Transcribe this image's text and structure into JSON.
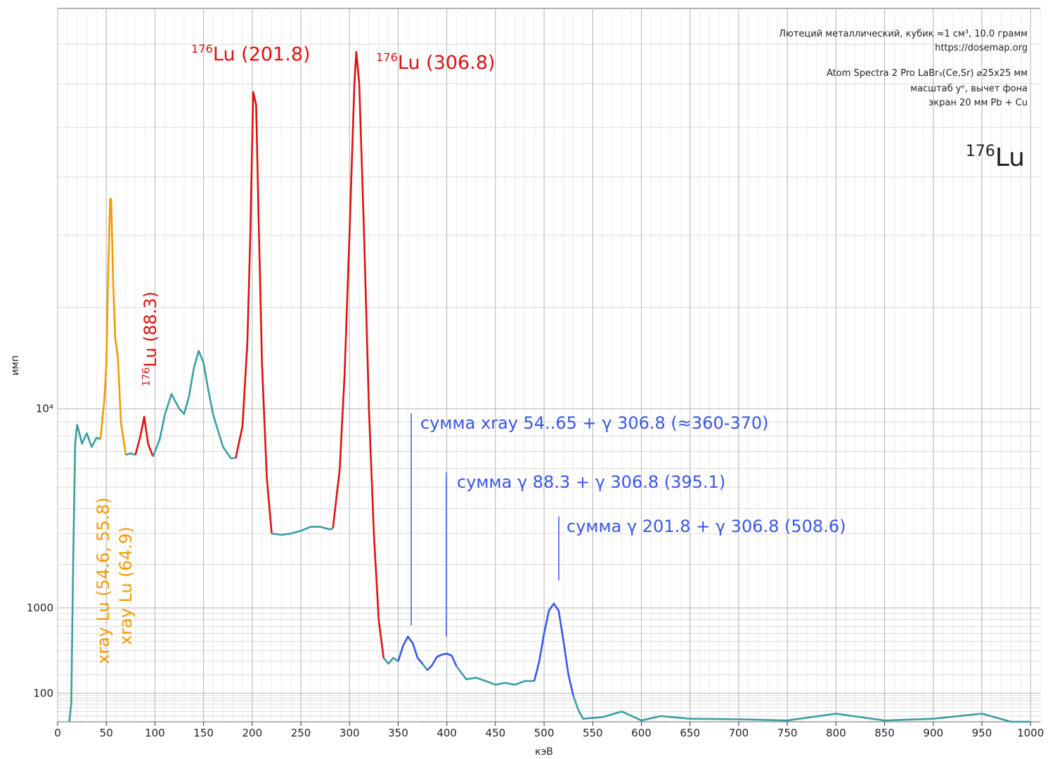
{
  "chart_data": {
    "type": "line",
    "x_label": "кэВ",
    "y_label": "имп",
    "xlim": [
      0,
      1010
    ],
    "ylim": [
      20,
      80000
    ],
    "y_power": 0.368,
    "xticks": [
      0,
      50,
      100,
      150,
      200,
      250,
      300,
      350,
      400,
      450,
      500,
      550,
      600,
      650,
      700,
      750,
      800,
      850,
      900,
      950,
      1000
    ],
    "x_minor_step": 10,
    "yticks": [
      100,
      1000,
      {
        "value": 10000,
        "label": "10⁴"
      }
    ],
    "y_minor": [
      30,
      40,
      50,
      60,
      70,
      80,
      90,
      200,
      300,
      400,
      500,
      600,
      700,
      800,
      900,
      2000,
      3000,
      4000,
      5000,
      6000,
      7000,
      8000,
      9000,
      20000,
      30000,
      40000,
      50000,
      60000,
      70000
    ],
    "grid": true,
    "info": [
      "Лютеций металлический, кубик ≈1 см³, 10.0 грамм",
      "https://dosemap.org",
      "Atom Spectra 2 Pro LaBr₃(Ce,Sr) ⌀25x25 мм",
      "масштаб yᵉ, вычет фона",
      "экран 20 мм Pb + Cu"
    ],
    "isotope": {
      "sup": "176",
      "text": "Lu"
    },
    "annotations": [
      {
        "text": "xray Lu (54.6,  55.8)",
        "color": "#f59a00"
      },
      {
        "text": "xray Lu (64.9)",
        "color": "#f59a00"
      },
      {
        "sup": "176",
        "text": "Lu (88.3)",
        "color": "#e01010"
      },
      {
        "sup": "176",
        "text": "Lu (201.8)",
        "color": "#e01010"
      },
      {
        "sup": "176",
        "text": "Lu (306.8)",
        "color": "#e01010"
      },
      {
        "text": "сумма  xray 54..65 + γ 306.8 (≈360-370)",
        "color": "#3a55e8"
      },
      {
        "text": "сумма  γ 88.3 + γ 306.8 (395.1)",
        "color": "#3a55e8"
      },
      {
        "text": "сумма  γ 201.8 + γ 306.8 (508.6)",
        "color": "#3a55e8"
      }
    ],
    "series": [
      {
        "color": "#3a9e9e",
        "x": [
          12,
          14,
          16,
          18,
          20,
          22,
          25,
          30,
          35,
          40,
          44
        ],
        "values": [
          20,
          63,
          2070,
          7500,
          8800,
          8300,
          7500,
          8200,
          7300,
          7900,
          7800
        ]
      },
      {
        "color": "#f59a00",
        "x": [
          44,
          48,
          50,
          52,
          54,
          55,
          57,
          59,
          62,
          65,
          70
        ],
        "values": [
          7800,
          10700,
          13800,
          25000,
          36000,
          36000,
          23500,
          16700,
          14500,
          9000,
          6800
        ]
      },
      {
        "color": "#3a9e9e",
        "x": [
          70,
          75,
          80
        ],
        "values": [
          6800,
          6900,
          6800
        ]
      },
      {
        "color": "#dd1111",
        "x": [
          80,
          85,
          89,
          93,
          98
        ],
        "values": [
          6800,
          8000,
          9400,
          7500,
          6700
        ]
      },
      {
        "color": "#3a9e9e",
        "x": [
          98,
          105,
          110,
          117,
          125,
          130,
          135,
          140,
          145,
          150,
          155,
          160,
          170,
          178,
          183
        ],
        "values": [
          6700,
          7800,
          9500,
          11200,
          10000,
          9600,
          11000,
          13500,
          15200,
          14000,
          11500,
          9500,
          7300,
          6600,
          6600
        ]
      },
      {
        "color": "#dd1111",
        "x": [
          183,
          190,
          195,
          198,
          201,
          204,
          207,
          210,
          215,
          220
        ],
        "values": [
          6600,
          8700,
          16000,
          30000,
          58000,
          55000,
          30000,
          14000,
          5500,
          3000
        ]
      },
      {
        "color": "#3a9e9e",
        "x": [
          220,
          230,
          240,
          250,
          260,
          270,
          280,
          283
        ],
        "values": [
          3000,
          2950,
          3000,
          3100,
          3250,
          3250,
          3150,
          3200
        ]
      },
      {
        "color": "#dd1111",
        "x": [
          283,
          290,
          295,
          300,
          305,
          307,
          310,
          315,
          320,
          325,
          330,
          335
        ],
        "values": [
          3200,
          6000,
          13000,
          30000,
          60000,
          68000,
          60000,
          30000,
          10000,
          3000,
          800,
          330
        ]
      },
      {
        "color": "#3a9e9e",
        "x": [
          335,
          340,
          345,
          350
        ],
        "values": [
          330,
          280,
          330,
          300
        ]
      },
      {
        "color": "#3a55e8",
        "x": [
          350,
          355,
          360,
          365,
          370,
          375
        ],
        "values": [
          300,
          450,
          560,
          480,
          330,
          280
        ]
      },
      {
        "color": "#3a9e9e",
        "x": [
          375,
          380
        ],
        "values": [
          280,
          230
        ]
      },
      {
        "color": "#3a55e8",
        "x": [
          380,
          385,
          390,
          395,
          400,
          405,
          410
        ],
        "values": [
          230,
          270,
          340,
          360,
          370,
          350,
          260
        ]
      },
      {
        "color": "#3a9e9e",
        "x": [
          410,
          420,
          430,
          440,
          450,
          460,
          470,
          480,
          490
        ],
        "values": [
          260,
          170,
          180,
          160,
          140,
          150,
          140,
          160,
          160
        ]
      },
      {
        "color": "#3a55e8",
        "x": [
          490,
          495,
          500,
          505,
          510,
          515,
          520,
          525,
          530
        ],
        "values": [
          160,
          300,
          600,
          950,
          1080,
          950,
          500,
          200,
          90
        ]
      },
      {
        "color": "#3a9e9e",
        "x": [
          530,
          535,
          540,
          560,
          580,
          600,
          620,
          650,
          700,
          750,
          800,
          850,
          900,
          950,
          980,
          1000
        ],
        "values": [
          90,
          45,
          25,
          28,
          40,
          22,
          30,
          25,
          24,
          22,
          35,
          22,
          25,
          35,
          20,
          20
        ]
      }
    ]
  }
}
